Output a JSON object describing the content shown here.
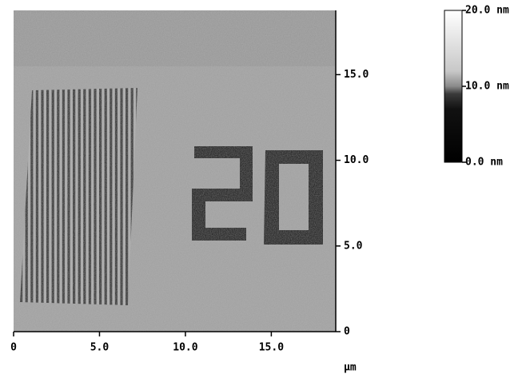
{
  "chart_data": {
    "type": "image",
    "xlabel": "µm",
    "xlim": [
      0,
      18.75
    ],
    "ylim": [
      0,
      18.75
    ],
    "xticks": [
      0,
      {
        "value": 5,
        "label": "5.0"
      },
      {
        "value": 10,
        "label": "10.0"
      },
      {
        "value": 15,
        "label": "15.0"
      }
    ],
    "yticks": [
      0,
      {
        "value": 5,
        "label": "5.0"
      },
      {
        "value": 10,
        "label": "10.0"
      },
      {
        "value": 15,
        "label": "15.0"
      }
    ],
    "colorbar": {
      "lim": [
        0,
        20
      ],
      "ticks": [
        {
          "value": 0,
          "label": "0.0 nm"
        },
        {
          "value": 10,
          "label": "10.0 nm"
        },
        {
          "value": 20,
          "label": "20.0 nm"
        }
      ]
    }
  }
}
